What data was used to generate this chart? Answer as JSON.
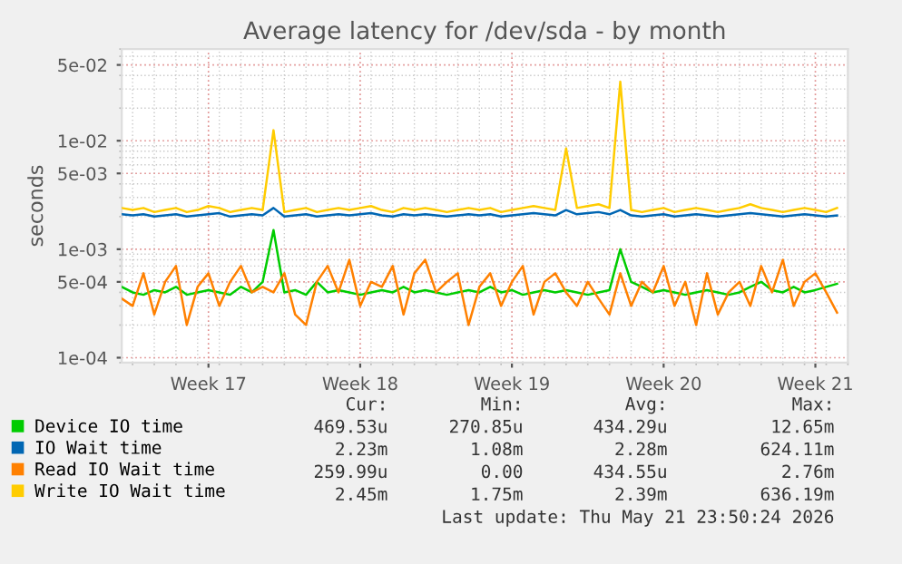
{
  "chart_data": {
    "type": "line",
    "title": "Average latency for /dev/sda - by month",
    "ylabel": "seconds",
    "log": "y",
    "grid": true,
    "legend": "bottom left",
    "marker": "none",
    "line_style": "solid",
    "xlim": [
      "2026-04-19T12:00",
      "2026-05-23T00:00"
    ],
    "ylim": [
      9e-05,
      0.07
    ],
    "xticks": [
      {
        "value": "2026-04-23T12:00",
        "label": "Week 17"
      },
      {
        "value": "2026-04-30T12:00",
        "label": "Week 18"
      },
      {
        "value": "2026-05-07T12:00",
        "label": "Week 19"
      },
      {
        "value": "2026-05-14T12:00",
        "label": "Week 20"
      },
      {
        "value": "2026-05-21T12:00",
        "label": "Week 21"
      }
    ],
    "yticks": [
      {
        "value": 0.0001,
        "label": "1e-04"
      },
      {
        "value": 0.0005,
        "label": "5e-04"
      },
      {
        "value": 0.001,
        "label": "1e-03"
      },
      {
        "value": 0.005,
        "label": "5e-03"
      },
      {
        "value": 0.01,
        "label": "1e-02"
      },
      {
        "value": 0.05,
        "label": "5e-02"
      }
    ],
    "x": [
      "2026-04-19T12:00",
      "2026-04-20T00:00",
      "2026-04-20T12:00",
      "2026-04-21T00:00",
      "2026-04-21T12:00",
      "2026-04-22T00:00",
      "2026-04-22T12:00",
      "2026-04-23T00:00",
      "2026-04-23T12:00",
      "2026-04-24T00:00",
      "2026-04-24T12:00",
      "2026-04-25T00:00",
      "2026-04-25T12:00",
      "2026-04-26T00:00",
      "2026-04-26T12:00",
      "2026-04-27T00:00",
      "2026-04-27T12:00",
      "2026-04-28T00:00",
      "2026-04-28T12:00",
      "2026-04-29T00:00",
      "2026-04-29T12:00",
      "2026-04-30T00:00",
      "2026-04-30T12:00",
      "2026-05-01T00:00",
      "2026-05-01T12:00",
      "2026-05-02T00:00",
      "2026-05-02T12:00",
      "2026-05-03T00:00",
      "2026-05-03T12:00",
      "2026-05-04T00:00",
      "2026-05-04T12:00",
      "2026-05-05T00:00",
      "2026-05-05T12:00",
      "2026-05-06T00:00",
      "2026-05-06T12:00",
      "2026-05-07T00:00",
      "2026-05-07T12:00",
      "2026-05-08T00:00",
      "2026-05-08T12:00",
      "2026-05-09T00:00",
      "2026-05-09T12:00",
      "2026-05-10T00:00",
      "2026-05-10T12:00",
      "2026-05-11T00:00",
      "2026-05-11T12:00",
      "2026-05-12T00:00",
      "2026-05-12T12:00",
      "2026-05-13T00:00",
      "2026-05-13T12:00",
      "2026-05-14T00:00",
      "2026-05-14T12:00",
      "2026-05-15T00:00",
      "2026-05-15T12:00",
      "2026-05-16T00:00",
      "2026-05-16T12:00",
      "2026-05-17T00:00",
      "2026-05-17T12:00",
      "2026-05-18T00:00",
      "2026-05-18T12:00",
      "2026-05-19T00:00",
      "2026-05-19T12:00",
      "2026-05-20T00:00",
      "2026-05-20T12:00",
      "2026-05-21T00:00",
      "2026-05-21T12:00",
      "2026-05-22T00:00",
      "2026-05-22T12:00"
    ],
    "series": [
      {
        "name": "Device IO time",
        "color": "#00cc00",
        "values": [
          0.00045,
          0.0004,
          0.00038,
          0.00042,
          0.0004,
          0.00045,
          0.00038,
          0.0004,
          0.00042,
          0.0004,
          0.00038,
          0.00045,
          0.0004,
          0.0005,
          0.0015,
          0.0004,
          0.00042,
          0.00038,
          0.0005,
          0.0004,
          0.00042,
          0.0004,
          0.00038,
          0.0004,
          0.00042,
          0.0004,
          0.00045,
          0.0004,
          0.00042,
          0.0004,
          0.00038,
          0.0004,
          0.00042,
          0.0004,
          0.00045,
          0.0004,
          0.00042,
          0.00038,
          0.0004,
          0.00042,
          0.0004,
          0.00042,
          0.0004,
          0.00038,
          0.0004,
          0.00042,
          0.001,
          0.0005,
          0.00045,
          0.0004,
          0.00042,
          0.0004,
          0.00038,
          0.0004,
          0.00042,
          0.0004,
          0.00038,
          0.0004,
          0.00045,
          0.0005,
          0.00042,
          0.0004,
          0.00045,
          0.0004,
          0.00042,
          0.00045,
          0.00048
        ]
      },
      {
        "name": "IO Wait time",
        "color": "#0066b3",
        "values": [
          0.0021,
          0.00205,
          0.0021,
          0.002,
          0.00205,
          0.0021,
          0.002,
          0.00205,
          0.0021,
          0.00215,
          0.002,
          0.00205,
          0.0021,
          0.00205,
          0.0024,
          0.002,
          0.00205,
          0.0021,
          0.002,
          0.00205,
          0.0021,
          0.00205,
          0.0021,
          0.00215,
          0.00205,
          0.002,
          0.0021,
          0.00205,
          0.0021,
          0.00205,
          0.002,
          0.00205,
          0.0021,
          0.00205,
          0.0021,
          0.002,
          0.00205,
          0.0021,
          0.00215,
          0.0021,
          0.00205,
          0.0023,
          0.0021,
          0.00215,
          0.0022,
          0.0021,
          0.0023,
          0.00205,
          0.002,
          0.00205,
          0.0021,
          0.002,
          0.00205,
          0.0021,
          0.00205,
          0.002,
          0.00205,
          0.0021,
          0.00215,
          0.0021,
          0.00205,
          0.002,
          0.00205,
          0.0021,
          0.00205,
          0.002,
          0.00205
        ]
      },
      {
        "name": "Read IO Wait time",
        "color": "#ff8000",
        "values": [
          0.00035,
          0.0003,
          0.0006,
          0.00025,
          0.0005,
          0.0007,
          0.0002,
          0.00045,
          0.0006,
          0.0003,
          0.0005,
          0.0007,
          0.0004,
          0.00045,
          0.0004,
          0.0006,
          0.00025,
          0.0002,
          0.0005,
          0.0007,
          0.0004,
          0.0008,
          0.0003,
          0.0005,
          0.00045,
          0.0007,
          0.00025,
          0.0006,
          0.0008,
          0.0004,
          0.0005,
          0.0006,
          0.0002,
          0.00045,
          0.0006,
          0.0003,
          0.0005,
          0.0007,
          0.00025,
          0.0005,
          0.0006,
          0.0004,
          0.0003,
          0.0005,
          0.00035,
          0.00025,
          0.0006,
          0.0003,
          0.0005,
          0.0004,
          0.0007,
          0.0003,
          0.0005,
          0.0002,
          0.0006,
          0.00025,
          0.0004,
          0.0005,
          0.0003,
          0.0007,
          0.0004,
          0.0008,
          0.0003,
          0.0005,
          0.0006,
          0.0004,
          0.00026
        ]
      },
      {
        "name": "Write IO Wait time",
        "color": "#ffcc00",
        "values": [
          0.0024,
          0.0023,
          0.0024,
          0.0022,
          0.0023,
          0.0024,
          0.0022,
          0.0023,
          0.0025,
          0.0024,
          0.0022,
          0.0023,
          0.0024,
          0.0023,
          0.0125,
          0.0022,
          0.0023,
          0.0024,
          0.0022,
          0.0023,
          0.0024,
          0.0023,
          0.0024,
          0.0025,
          0.0023,
          0.0022,
          0.0024,
          0.0023,
          0.0024,
          0.0023,
          0.0022,
          0.0023,
          0.0024,
          0.0023,
          0.0024,
          0.0022,
          0.0023,
          0.0024,
          0.0025,
          0.0024,
          0.0023,
          0.0085,
          0.0024,
          0.0025,
          0.0026,
          0.0024,
          0.035,
          0.0023,
          0.0022,
          0.0023,
          0.0024,
          0.0022,
          0.0023,
          0.0024,
          0.0023,
          0.0022,
          0.0023,
          0.0024,
          0.0026,
          0.0024,
          0.0023,
          0.0022,
          0.0023,
          0.0024,
          0.0023,
          0.0022,
          0.0024
        ]
      }
    ],
    "annotations": [
      "Cur:",
      "Min:",
      "Avg:",
      "Max:",
      "469.53u",
      "270.85u",
      "434.29u",
      "12.65m",
      "2.23m",
      "1.08m",
      "2.28m",
      "624.11m",
      "259.99u",
      "0.00",
      "434.55u",
      "2.76m",
      "2.45m",
      "1.75m",
      "2.39m",
      "636.19m",
      "Last update: Thu May 21 23:50:24 2026"
    ]
  }
}
